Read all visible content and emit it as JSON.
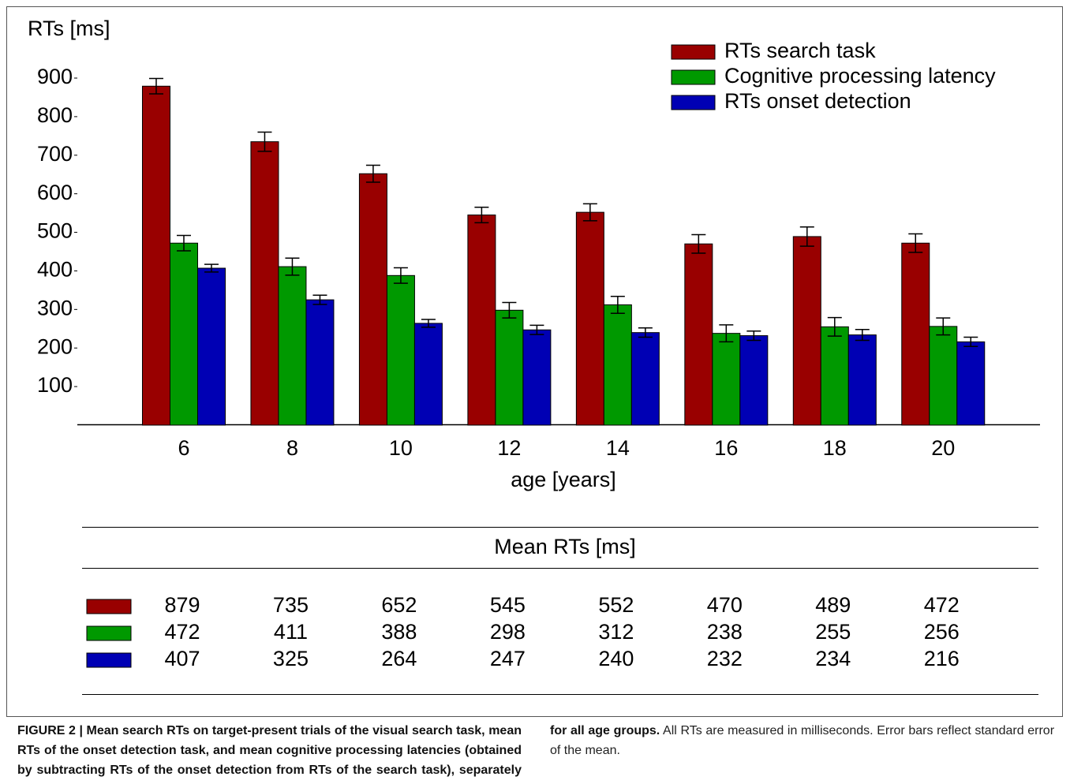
{
  "chart_data": {
    "type": "bar",
    "y_label": "RTs [ms]",
    "x_label": "age [years]",
    "categories": [
      "6",
      "8",
      "10",
      "12",
      "14",
      "16",
      "18",
      "20"
    ],
    "series": [
      {
        "name": "RTs search task",
        "color": "#990000",
        "values": [
          879,
          735,
          652,
          545,
          552,
          470,
          489,
          472
        ],
        "errors": [
          20,
          25,
          22,
          20,
          22,
          24,
          25,
          24
        ]
      },
      {
        "name": "Cognitive processing latency",
        "color": "#009900",
        "values": [
          472,
          411,
          388,
          298,
          312,
          238,
          255,
          256
        ],
        "errors": [
          20,
          22,
          20,
          20,
          22,
          22,
          24,
          22
        ]
      },
      {
        "name": "RTs onset detection",
        "color": "#0000b4",
        "values": [
          407,
          325,
          264,
          247,
          240,
          232,
          234,
          216
        ],
        "errors": [
          10,
          12,
          10,
          12,
          12,
          12,
          14,
          12
        ]
      }
    ],
    "ylim": [
      0,
      900
    ],
    "yticks": [
      100,
      200,
      300,
      400,
      500,
      600,
      700,
      800,
      900
    ],
    "grid": false
  },
  "table": {
    "title": "Mean RTs [ms]"
  },
  "caption": {
    "bold": "FIGURE 2 | Mean search RTs on target-present trials of the visual search task, mean RTs of the onset detection task, and mean cognitive processing latencies (obtained by subtracting RTs of the onset detection from RTs of the search task), separately for all age groups.",
    "text": "All RTs are measured in milliseconds. Error bars reflect standard error of the mean."
  }
}
